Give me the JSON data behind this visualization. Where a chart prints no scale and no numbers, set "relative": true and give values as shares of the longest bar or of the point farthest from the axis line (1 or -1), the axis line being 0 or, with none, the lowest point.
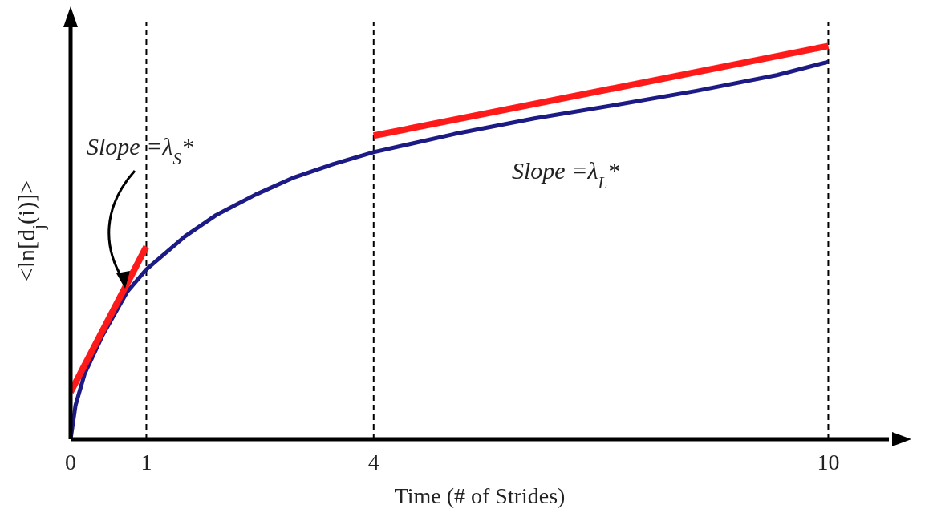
{
  "chart_data": {
    "type": "line",
    "relative": true,
    "xlabel": "Time (# of Strides)",
    "ylabel": "<ln[d$_{j}$(i)]>",
    "xlim": [
      0,
      10.8
    ],
    "xticks": [
      0,
      1,
      4,
      10
    ],
    "series": [
      {
        "color": "#1c1a84",
        "x": [
          0,
          0.065,
          0.185,
          0.427,
          0.75,
          1,
          1.51,
          1.92,
          2.44,
          2.95,
          3.47,
          4,
          5.06,
          6.12,
          7.19,
          8.26,
          9.32,
          10
        ],
        "values": [
          0,
          0.086,
          0.166,
          0.266,
          0.376,
          0.432,
          0.516,
          0.57,
          0.622,
          0.666,
          0.7,
          0.73,
          0.776,
          0.816,
          0.85,
          0.886,
          0.926,
          0.96
        ]
      },
      {
        "color": "#ff1a1a",
        "x": [
          0,
          1
        ],
        "values": [
          0.12,
          0.49
        ]
      },
      {
        "color": "#ff1a1a",
        "x": [
          4,
          10
        ],
        "values": [
          0.772,
          1.0
        ]
      }
    ],
    "ref_lines": [
      {
        "axis": "x",
        "value": 1,
        "color": "#000000",
        "line_style": "dashed"
      },
      {
        "axis": "x",
        "value": 4,
        "color": "#000000",
        "line_style": "dashed"
      },
      {
        "axis": "x",
        "value": 10,
        "color": "#000000",
        "line_style": "dashed"
      }
    ],
    "annotations": [
      "Slope =λ$_{S}$*",
      "Slope =λ$_{L}$*"
    ]
  }
}
